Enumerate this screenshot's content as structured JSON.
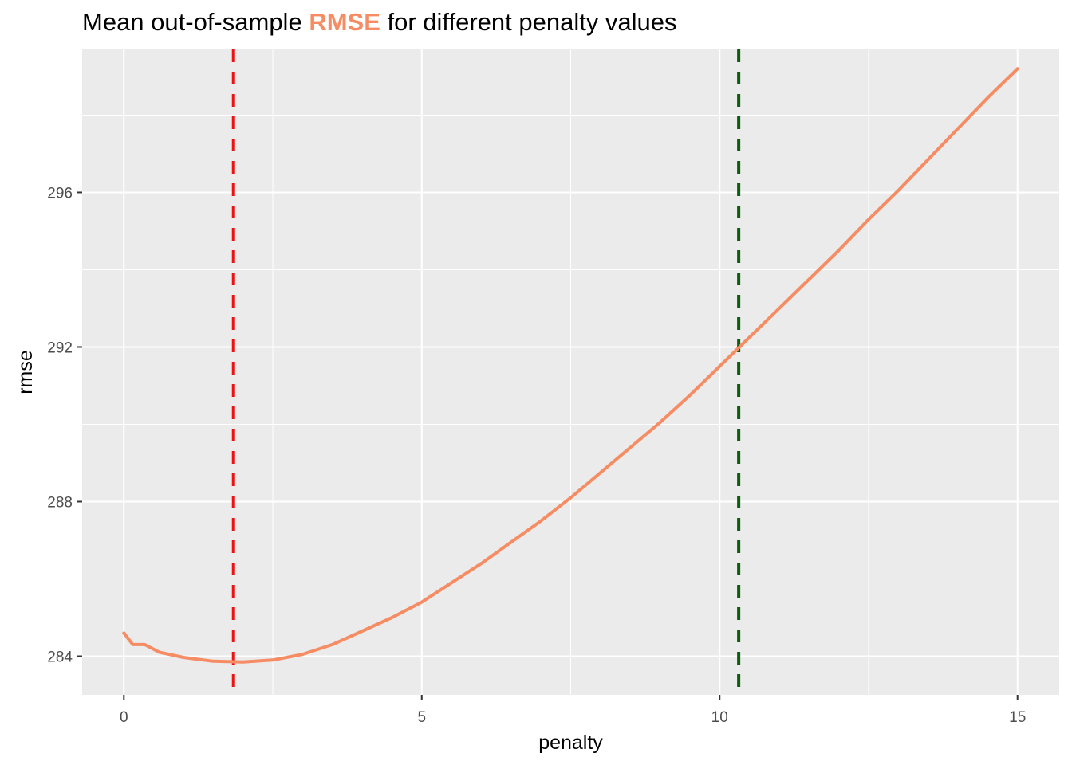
{
  "title": {
    "prefix": "Mean out-of-sample ",
    "highlight": "RMSE",
    "suffix": " for different penalty values"
  },
  "colors": {
    "panel": "#ebebeb",
    "grid": "#ffffff",
    "line": "#f68c63",
    "vline_min": "#ee1111",
    "vline_1se": "#0b5c0b"
  },
  "chart_data": {
    "type": "line",
    "title": "Mean out-of-sample RMSE for different penalty values",
    "xlabel": "penalty",
    "ylabel": "rmse",
    "xlim": [
      -0.7,
      15.7
    ],
    "ylim": [
      283.0,
      299.7
    ],
    "xticks": [
      0,
      5,
      10,
      15
    ],
    "xtick_labels": [
      "0",
      "5",
      "10",
      "15"
    ],
    "yticks": [
      284,
      288,
      292,
      296
    ],
    "ytick_labels": [
      "284",
      "288",
      "292",
      "296"
    ],
    "grid": true,
    "legend": "none",
    "series": [
      {
        "x": [
          0,
          0.15,
          0.35,
          0.6,
          1.0,
          1.5,
          2.0,
          2.5,
          3.0,
          3.5,
          4.0,
          4.5,
          5.0,
          5.5,
          6.0,
          6.5,
          7.0,
          7.5,
          8.0,
          8.5,
          9.0,
          9.5,
          10.0,
          10.5,
          11.0,
          11.5,
          12.0,
          12.5,
          13.0,
          13.5,
          14.0,
          14.5,
          15.0
        ],
        "values": [
          284.6,
          284.3,
          284.3,
          284.1,
          283.97,
          283.87,
          283.85,
          283.9,
          284.05,
          284.3,
          284.65,
          285.0,
          285.4,
          285.9,
          286.4,
          286.95,
          287.5,
          288.1,
          288.75,
          289.4,
          290.05,
          290.75,
          291.5,
          292.25,
          293.0,
          293.75,
          294.5,
          295.3,
          296.05,
          296.85,
          297.65,
          298.45,
          299.2
        ]
      }
    ],
    "vlines": [
      {
        "x": 1.84,
        "color": "#ee1111",
        "style": "dashed"
      },
      {
        "x": 10.32,
        "color": "#0b5c0b",
        "style": "dashed"
      }
    ]
  }
}
